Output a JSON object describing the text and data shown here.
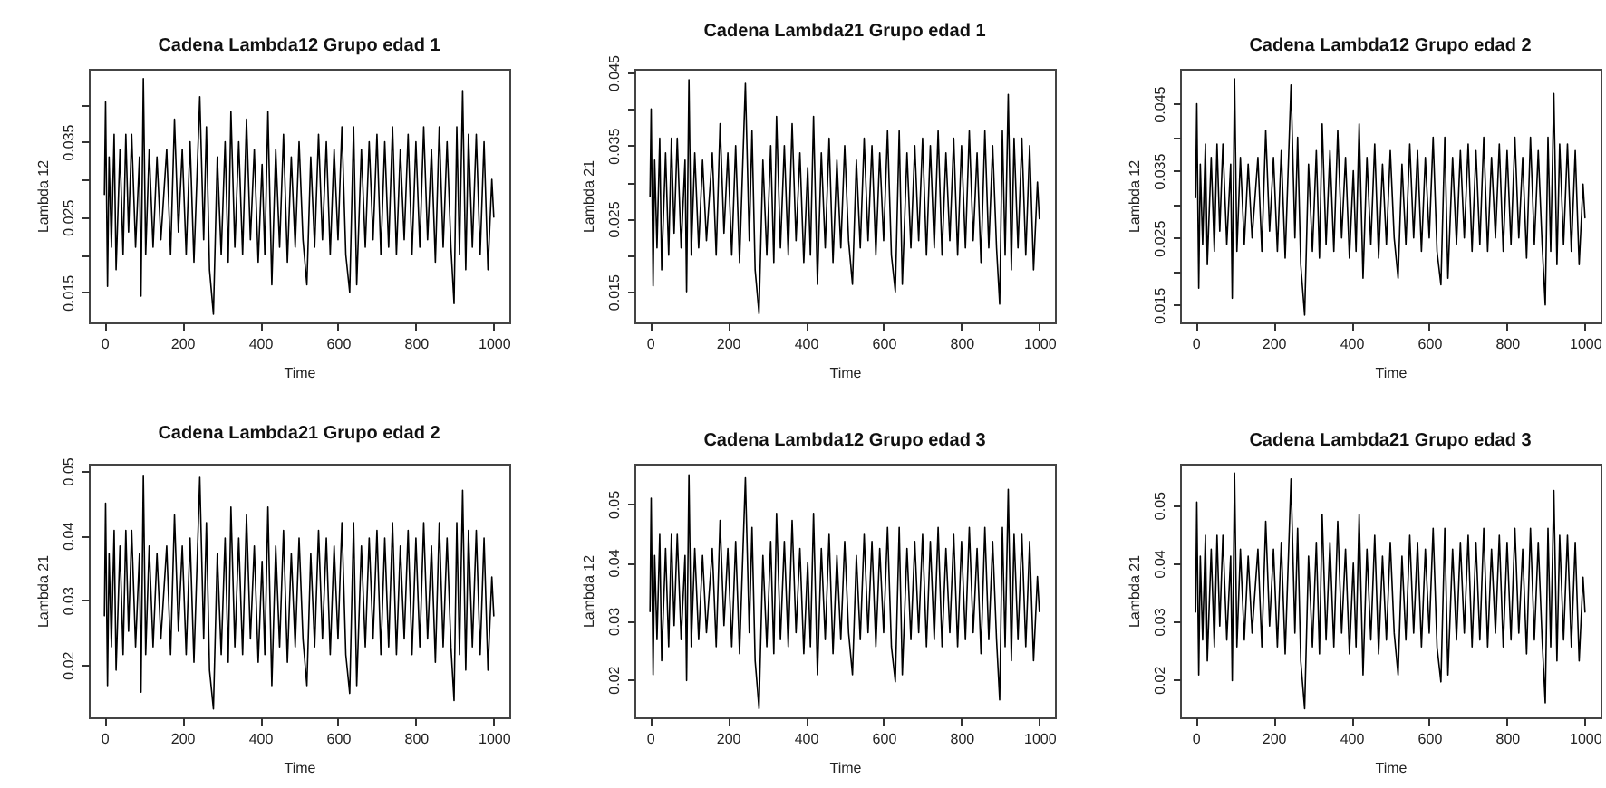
{
  "chart_data": [
    {
      "type": "line",
      "title": "Cadena Lambda12 Grupo edad 1",
      "xlabel": "Time",
      "ylabel": "Lambda 12",
      "color": "#000000",
      "xlim": [
        -40,
        1040
      ],
      "ylim": [
        0.011,
        0.0447
      ],
      "xticks": [
        0,
        200,
        400,
        600,
        800,
        1000
      ],
      "yticks": [
        0.015,
        {
          "value": 0.02,
          "label": null
        },
        0.025,
        {
          "value": 0.03,
          "label": null
        },
        0.035,
        {
          "value": 0.04,
          "label": null
        }
      ],
      "x": [
        0,
        3,
        8,
        12,
        18,
        25,
        30,
        40,
        48,
        55,
        62,
        70,
        80,
        90,
        94,
        100,
        106,
        115,
        125,
        135,
        145,
        160,
        170,
        180,
        190,
        200,
        210,
        220,
        230,
        245,
        255,
        262,
        270,
        280,
        290,
        300,
        310,
        318,
        325,
        335,
        345,
        355,
        365,
        375,
        385,
        395,
        405,
        412,
        420,
        430,
        440,
        450,
        460,
        470,
        480,
        490,
        500,
        510,
        520,
        530,
        540,
        550,
        560,
        570,
        580,
        590,
        600,
        610,
        620,
        630,
        640,
        648,
        660,
        670,
        680,
        690,
        700,
        710,
        720,
        730,
        740,
        750,
        760,
        770,
        780,
        790,
        800,
        810,
        820,
        830,
        840,
        850,
        860,
        870,
        880,
        890,
        898,
        905,
        912,
        920,
        928,
        935,
        945,
        955,
        965,
        975,
        985,
        995,
        1000
      ],
      "values": [
        0.028,
        0.0403,
        0.0158,
        0.033,
        0.021,
        0.036,
        0.018,
        0.034,
        0.02,
        0.036,
        0.023,
        0.036,
        0.021,
        0.033,
        0.0145,
        0.0434,
        0.02,
        0.034,
        0.021,
        0.033,
        0.022,
        0.034,
        0.02,
        0.038,
        0.023,
        0.034,
        0.02,
        0.035,
        0.019,
        0.041,
        0.022,
        0.037,
        0.018,
        0.0121,
        0.033,
        0.02,
        0.035,
        0.019,
        0.039,
        0.021,
        0.035,
        0.02,
        0.038,
        0.022,
        0.034,
        0.019,
        0.032,
        0.02,
        0.039,
        0.016,
        0.034,
        0.021,
        0.036,
        0.019,
        0.033,
        0.021,
        0.035,
        0.022,
        0.016,
        0.033,
        0.021,
        0.036,
        0.022,
        0.035,
        0.02,
        0.034,
        0.022,
        0.037,
        0.02,
        0.015,
        0.037,
        0.016,
        0.034,
        0.021,
        0.035,
        0.022,
        0.036,
        0.02,
        0.035,
        0.021,
        0.037,
        0.02,
        0.034,
        0.022,
        0.036,
        0.02,
        0.035,
        0.021,
        0.037,
        0.022,
        0.034,
        0.019,
        0.037,
        0.021,
        0.035,
        0.021,
        0.0135,
        0.037,
        0.02,
        0.0418,
        0.018,
        0.036,
        0.021,
        0.036,
        0.02,
        0.035,
        0.018,
        0.03,
        0.025
      ]
    },
    {
      "type": "line",
      "title": "Cadena Lambda21 Grupo edad 1",
      "xlabel": "Time",
      "ylabel": "Lambda 21",
      "color": "#000000",
      "xlim": [
        -40,
        1040
      ],
      "ylim": [
        0.0108,
        0.0455
      ],
      "xticks": [
        0,
        200,
        400,
        600,
        800,
        1000
      ],
      "yticks": [
        0.015,
        {
          "value": 0.02,
          "label": null
        },
        0.025,
        {
          "value": 0.03,
          "label": null
        },
        0.035,
        {
          "value": 0.04,
          "label": null
        },
        0.045
      ],
      "x": [
        0,
        3,
        8,
        12,
        18,
        25,
        30,
        40,
        48,
        55,
        62,
        70,
        80,
        90,
        94,
        100,
        106,
        115,
        125,
        135,
        145,
        160,
        170,
        180,
        190,
        200,
        210,
        220,
        230,
        245,
        255,
        262,
        270,
        280,
        290,
        300,
        310,
        318,
        325,
        335,
        345,
        355,
        365,
        375,
        385,
        395,
        405,
        412,
        420,
        430,
        440,
        450,
        460,
        470,
        480,
        490,
        500,
        510,
        520,
        530,
        540,
        550,
        560,
        570,
        580,
        590,
        600,
        610,
        620,
        630,
        640,
        648,
        660,
        670,
        680,
        690,
        700,
        710,
        720,
        730,
        740,
        750,
        760,
        770,
        780,
        790,
        800,
        810,
        820,
        830,
        840,
        850,
        860,
        870,
        880,
        890,
        898,
        905,
        912,
        920,
        928,
        935,
        945,
        955,
        965,
        975,
        985,
        995,
        1000
      ],
      "values": [
        0.028,
        0.04,
        0.0158,
        0.033,
        0.021,
        0.036,
        0.018,
        0.034,
        0.02,
        0.036,
        0.023,
        0.036,
        0.021,
        0.033,
        0.015,
        0.044,
        0.02,
        0.034,
        0.021,
        0.033,
        0.022,
        0.034,
        0.02,
        0.038,
        0.023,
        0.034,
        0.02,
        0.035,
        0.019,
        0.0435,
        0.022,
        0.037,
        0.018,
        0.012,
        0.033,
        0.02,
        0.035,
        0.019,
        0.039,
        0.021,
        0.035,
        0.02,
        0.038,
        0.022,
        0.034,
        0.019,
        0.032,
        0.02,
        0.039,
        0.016,
        0.034,
        0.021,
        0.036,
        0.019,
        0.033,
        0.021,
        0.035,
        0.022,
        0.016,
        0.033,
        0.021,
        0.036,
        0.022,
        0.035,
        0.02,
        0.034,
        0.022,
        0.037,
        0.02,
        0.015,
        0.037,
        0.016,
        0.034,
        0.021,
        0.035,
        0.022,
        0.036,
        0.02,
        0.035,
        0.021,
        0.037,
        0.02,
        0.034,
        0.022,
        0.036,
        0.02,
        0.035,
        0.021,
        0.037,
        0.022,
        0.034,
        0.019,
        0.037,
        0.021,
        0.035,
        0.021,
        0.0133,
        0.037,
        0.02,
        0.042,
        0.018,
        0.036,
        0.021,
        0.036,
        0.02,
        0.035,
        0.018,
        0.03,
        0.025
      ]
    },
    {
      "type": "line",
      "title": "Cadena Lambda12 Grupo edad 2",
      "xlabel": "Time",
      "ylabel": "Lambda 12",
      "color": "#000000",
      "xlim": [
        -40,
        1040
      ],
      "ylim": [
        0.0124,
        0.0502
      ],
      "xticks": [
        0,
        200,
        400,
        600,
        800,
        1000
      ],
      "yticks": [
        0.015,
        {
          "value": 0.02,
          "label": null
        },
        0.025,
        {
          "value": 0.03,
          "label": null
        },
        0.035,
        {
          "value": 0.04,
          "label": null
        },
        0.045
      ],
      "x": [
        0,
        3,
        8,
        12,
        18,
        25,
        30,
        40,
        48,
        55,
        62,
        70,
        80,
        90,
        94,
        100,
        106,
        115,
        125,
        135,
        145,
        160,
        170,
        180,
        190,
        200,
        210,
        220,
        230,
        245,
        255,
        262,
        270,
        280,
        290,
        300,
        310,
        318,
        325,
        335,
        345,
        355,
        365,
        375,
        385,
        395,
        405,
        412,
        420,
        430,
        440,
        450,
        460,
        470,
        480,
        490,
        500,
        510,
        520,
        530,
        540,
        550,
        560,
        570,
        580,
        590,
        600,
        610,
        620,
        630,
        640,
        648,
        660,
        670,
        680,
        690,
        700,
        710,
        720,
        730,
        740,
        750,
        760,
        770,
        780,
        790,
        800,
        810,
        820,
        830,
        840,
        850,
        860,
        870,
        880,
        890,
        898,
        905,
        912,
        920,
        928,
        935,
        945,
        955,
        965,
        975,
        985,
        995,
        1000
      ],
      "values": [
        0.031,
        0.045,
        0.0175,
        0.036,
        0.024,
        0.039,
        0.021,
        0.037,
        0.023,
        0.039,
        0.026,
        0.039,
        0.024,
        0.036,
        0.016,
        0.0487,
        0.023,
        0.037,
        0.024,
        0.036,
        0.025,
        0.037,
        0.023,
        0.041,
        0.026,
        0.037,
        0.023,
        0.038,
        0.022,
        0.0478,
        0.025,
        0.04,
        0.021,
        0.0135,
        0.036,
        0.023,
        0.038,
        0.022,
        0.042,
        0.024,
        0.038,
        0.023,
        0.041,
        0.025,
        0.037,
        0.022,
        0.035,
        0.023,
        0.042,
        0.019,
        0.037,
        0.024,
        0.039,
        0.022,
        0.036,
        0.024,
        0.038,
        0.025,
        0.019,
        0.036,
        0.024,
        0.039,
        0.025,
        0.038,
        0.023,
        0.037,
        0.025,
        0.04,
        0.023,
        0.018,
        0.04,
        0.019,
        0.037,
        0.024,
        0.038,
        0.025,
        0.039,
        0.023,
        0.038,
        0.024,
        0.04,
        0.023,
        0.037,
        0.025,
        0.039,
        0.023,
        0.038,
        0.024,
        0.04,
        0.025,
        0.037,
        0.022,
        0.04,
        0.024,
        0.038,
        0.024,
        0.015,
        0.04,
        0.023,
        0.0465,
        0.021,
        0.039,
        0.024,
        0.039,
        0.023,
        0.038,
        0.021,
        0.033,
        0.028
      ]
    },
    {
      "type": "line",
      "title": "Cadena Lambda21 Grupo edad 2",
      "xlabel": "Time",
      "ylabel": "Lambda 21",
      "color": "#000000",
      "xlim": [
        -40,
        1040
      ],
      "ylim": [
        0.0119,
        0.0511
      ],
      "xticks": [
        0,
        200,
        400,
        600,
        800,
        1000
      ],
      "yticks": [
        0.02,
        0.03,
        0.04,
        0.05
      ],
      "x": [
        0,
        3,
        8,
        12,
        18,
        25,
        30,
        40,
        48,
        55,
        62,
        70,
        80,
        90,
        94,
        100,
        106,
        115,
        125,
        135,
        145,
        160,
        170,
        180,
        190,
        200,
        210,
        220,
        230,
        245,
        255,
        262,
        270,
        280,
        290,
        300,
        310,
        318,
        325,
        335,
        345,
        355,
        365,
        375,
        385,
        395,
        405,
        412,
        420,
        430,
        440,
        450,
        460,
        470,
        480,
        490,
        500,
        510,
        520,
        530,
        540,
        550,
        560,
        570,
        580,
        590,
        600,
        610,
        620,
        630,
        640,
        648,
        660,
        670,
        680,
        690,
        700,
        710,
        720,
        730,
        740,
        750,
        760,
        770,
        780,
        790,
        800,
        810,
        820,
        830,
        840,
        850,
        860,
        870,
        880,
        890,
        898,
        905,
        912,
        920,
        928,
        935,
        945,
        955,
        965,
        975,
        985,
        995,
        1000
      ],
      "values": [
        0.0276,
        0.045,
        0.0168,
        0.0372,
        0.0228,
        0.0408,
        0.0192,
        0.0384,
        0.0216,
        0.0408,
        0.0252,
        0.0408,
        0.0228,
        0.0372,
        0.0158,
        0.0493,
        0.0216,
        0.0384,
        0.0228,
        0.0372,
        0.024,
        0.0384,
        0.0216,
        0.0432,
        0.0252,
        0.0384,
        0.0216,
        0.0396,
        0.0204,
        0.049,
        0.024,
        0.042,
        0.0192,
        0.0132,
        0.0372,
        0.0216,
        0.0396,
        0.0204,
        0.0444,
        0.0228,
        0.0396,
        0.0216,
        0.0432,
        0.024,
        0.0384,
        0.0204,
        0.036,
        0.0216,
        0.0444,
        0.0168,
        0.0384,
        0.0228,
        0.0408,
        0.0204,
        0.0372,
        0.0228,
        0.0396,
        0.024,
        0.0168,
        0.0372,
        0.0228,
        0.0408,
        0.024,
        0.0396,
        0.0216,
        0.0384,
        0.024,
        0.042,
        0.0216,
        0.0156,
        0.042,
        0.0168,
        0.0384,
        0.0228,
        0.0396,
        0.024,
        0.0408,
        0.0216,
        0.0396,
        0.0228,
        0.042,
        0.0216,
        0.0384,
        0.024,
        0.0408,
        0.0216,
        0.0396,
        0.0228,
        0.042,
        0.024,
        0.0384,
        0.0204,
        0.042,
        0.0228,
        0.0396,
        0.0228,
        0.0145,
        0.042,
        0.0216,
        0.047,
        0.0192,
        0.0408,
        0.0228,
        0.0408,
        0.0216,
        0.0396,
        0.0192,
        0.0336,
        0.0276
      ]
    },
    {
      "type": "line",
      "title": "Cadena Lambda12 Grupo edad 3",
      "xlabel": "Time",
      "ylabel": "Lambda 12",
      "color": "#000000",
      "xlim": [
        -40,
        1040
      ],
      "ylim": [
        0.0135,
        0.0569
      ],
      "xticks": [
        0,
        200,
        400,
        600,
        800,
        1000
      ],
      "yticks": [
        0.02,
        0.03,
        0.04,
        0.05
      ],
      "x": [
        0,
        3,
        8,
        12,
        18,
        25,
        30,
        40,
        48,
        55,
        62,
        70,
        80,
        90,
        94,
        100,
        106,
        115,
        125,
        135,
        145,
        160,
        170,
        180,
        190,
        200,
        210,
        220,
        230,
        245,
        255,
        262,
        270,
        280,
        290,
        300,
        310,
        318,
        325,
        335,
        345,
        355,
        365,
        375,
        385,
        395,
        405,
        412,
        420,
        430,
        440,
        450,
        460,
        470,
        480,
        490,
        500,
        510,
        520,
        530,
        540,
        550,
        560,
        570,
        580,
        590,
        600,
        610,
        620,
        630,
        640,
        648,
        660,
        670,
        680,
        690,
        700,
        710,
        720,
        730,
        740,
        750,
        760,
        770,
        780,
        790,
        800,
        810,
        820,
        830,
        840,
        850,
        860,
        870,
        880,
        890,
        898,
        905,
        912,
        920,
        928,
        935,
        945,
        955,
        965,
        975,
        985,
        995,
        1000
      ],
      "values": [
        0.0316,
        0.051,
        0.0208,
        0.0412,
        0.0268,
        0.0448,
        0.0232,
        0.0424,
        0.0256,
        0.0448,
        0.0292,
        0.0448,
        0.0268,
        0.0412,
        0.0198,
        0.055,
        0.0256,
        0.0424,
        0.0268,
        0.0412,
        0.028,
        0.0424,
        0.0256,
        0.0472,
        0.0292,
        0.0424,
        0.0256,
        0.0436,
        0.0244,
        0.0545,
        0.028,
        0.046,
        0.0232,
        0.015,
        0.0412,
        0.0256,
        0.0436,
        0.0244,
        0.0484,
        0.0268,
        0.0436,
        0.0256,
        0.0472,
        0.028,
        0.0424,
        0.0244,
        0.04,
        0.0256,
        0.0484,
        0.0208,
        0.0424,
        0.0268,
        0.0448,
        0.0244,
        0.0412,
        0.0268,
        0.0436,
        0.028,
        0.0208,
        0.0412,
        0.0268,
        0.0448,
        0.028,
        0.0436,
        0.0256,
        0.0424,
        0.028,
        0.046,
        0.0256,
        0.0196,
        0.046,
        0.0208,
        0.0424,
        0.0268,
        0.0436,
        0.028,
        0.0448,
        0.0256,
        0.0436,
        0.0268,
        0.046,
        0.0256,
        0.0424,
        0.028,
        0.0448,
        0.0256,
        0.0436,
        0.0268,
        0.046,
        0.028,
        0.0424,
        0.0244,
        0.046,
        0.0268,
        0.0436,
        0.0268,
        0.0165,
        0.046,
        0.0256,
        0.0525,
        0.0232,
        0.0448,
        0.0268,
        0.0448,
        0.0256,
        0.0436,
        0.0232,
        0.0376,
        0.0316
      ]
    },
    {
      "type": "line",
      "title": "Cadena Lambda21 Grupo edad 3",
      "xlabel": "Time",
      "ylabel": "Lambda 21",
      "color": "#000000",
      "xlim": [
        -40,
        1040
      ],
      "ylim": [
        0.0135,
        0.0571
      ],
      "xticks": [
        0,
        200,
        400,
        600,
        800,
        1000
      ],
      "yticks": [
        0.02,
        0.03,
        0.04,
        0.05
      ],
      "x": [
        0,
        3,
        8,
        12,
        18,
        25,
        30,
        40,
        48,
        55,
        62,
        70,
        80,
        90,
        94,
        100,
        106,
        115,
        125,
        135,
        145,
        160,
        170,
        180,
        190,
        200,
        210,
        220,
        230,
        245,
        255,
        262,
        270,
        280,
        290,
        300,
        310,
        318,
        325,
        335,
        345,
        355,
        365,
        375,
        385,
        395,
        405,
        412,
        420,
        430,
        440,
        450,
        460,
        470,
        480,
        490,
        500,
        510,
        520,
        530,
        540,
        550,
        560,
        570,
        580,
        590,
        600,
        610,
        620,
        630,
        640,
        648,
        660,
        670,
        680,
        690,
        700,
        710,
        720,
        730,
        740,
        750,
        760,
        770,
        780,
        790,
        800,
        810,
        820,
        830,
        840,
        850,
        860,
        870,
        880,
        890,
        898,
        905,
        912,
        920,
        928,
        935,
        945,
        955,
        965,
        975,
        985,
        995,
        1000
      ],
      "values": [
        0.0316,
        0.0505,
        0.0208,
        0.0412,
        0.0268,
        0.0448,
        0.0232,
        0.0424,
        0.0256,
        0.0448,
        0.0292,
        0.0448,
        0.0268,
        0.0412,
        0.0198,
        0.0555,
        0.0256,
        0.0424,
        0.0268,
        0.0412,
        0.028,
        0.0424,
        0.0256,
        0.0472,
        0.0292,
        0.0424,
        0.0256,
        0.0436,
        0.0244,
        0.0545,
        0.028,
        0.046,
        0.0232,
        0.015,
        0.0412,
        0.0256,
        0.0436,
        0.0244,
        0.0484,
        0.0268,
        0.0436,
        0.0256,
        0.0472,
        0.028,
        0.0424,
        0.0244,
        0.04,
        0.0256,
        0.0484,
        0.0208,
        0.0424,
        0.0268,
        0.0448,
        0.0244,
        0.0412,
        0.0268,
        0.0436,
        0.028,
        0.0208,
        0.0412,
        0.0268,
        0.0448,
        0.028,
        0.0436,
        0.0256,
        0.0424,
        0.028,
        0.046,
        0.0256,
        0.0196,
        0.046,
        0.0208,
        0.0424,
        0.0268,
        0.0436,
        0.028,
        0.0448,
        0.0256,
        0.0436,
        0.0268,
        0.046,
        0.0256,
        0.0424,
        0.028,
        0.0448,
        0.0256,
        0.0436,
        0.0268,
        0.046,
        0.028,
        0.0424,
        0.0244,
        0.046,
        0.0268,
        0.0436,
        0.0268,
        0.016,
        0.046,
        0.0256,
        0.0525,
        0.0232,
        0.0448,
        0.0268,
        0.0448,
        0.0256,
        0.0436,
        0.0232,
        0.0376,
        0.0316
      ]
    }
  ]
}
